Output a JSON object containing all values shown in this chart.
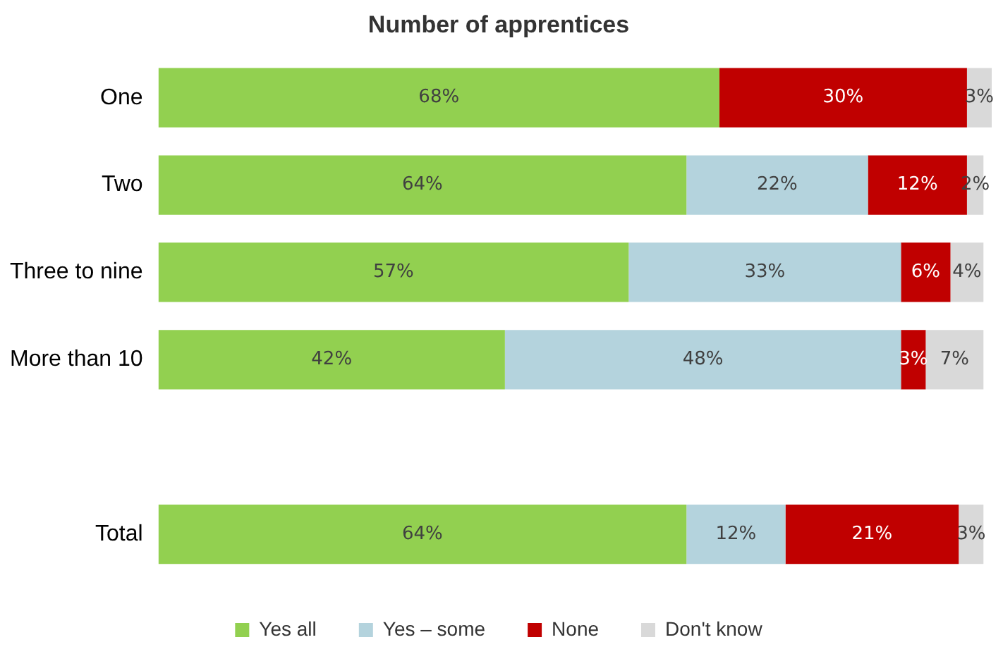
{
  "chart_data": {
    "type": "bar",
    "orientation": "horizontal",
    "stacked": true,
    "title": "Number of apprentices",
    "categories": [
      "One",
      "Two",
      "Three to nine",
      "More than 10",
      null,
      "Total"
    ],
    "series": [
      {
        "name": "Yes all",
        "color": "#92d050",
        "values": [
          68,
          64,
          57,
          42,
          null,
          64
        ],
        "value_labels": [
          "68%",
          "64%",
          "57%",
          "42%",
          null,
          "64%"
        ]
      },
      {
        "name": "Yes – some",
        "color": "#b4d3dd",
        "values": [
          0,
          22,
          33,
          48,
          null,
          12
        ],
        "value_labels": [
          null,
          "22%",
          "33%",
          "48%",
          null,
          "12%"
        ]
      },
      {
        "name": "None",
        "color": "#c00000",
        "values": [
          30,
          12,
          6,
          3,
          null,
          21
        ],
        "value_labels": [
          "30%",
          "12%",
          "6%",
          "3%",
          null,
          "21%"
        ]
      },
      {
        "name": "Don't know",
        "color": "#d9d9d9",
        "values": [
          3,
          2,
          4,
          7,
          null,
          3
        ],
        "value_labels": [
          "3%",
          "2%",
          "4%",
          "7%",
          null,
          "3%"
        ]
      }
    ],
    "xlim": [
      0,
      101
    ],
    "tick_labels": "y",
    "legend": "bottom"
  }
}
